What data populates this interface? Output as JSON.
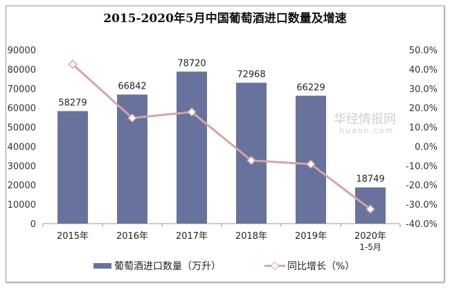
{
  "chart_data": {
    "type": "bar+line",
    "title": "2015-2020年5月中国葡萄酒进口数量及增速",
    "categories": [
      "2015年",
      "2016年",
      "2017年",
      "2018年",
      "2019年",
      "2020年1-5月"
    ],
    "series": [
      {
        "name": "葡萄酒进口数量（万升）",
        "type": "bar",
        "axis": "left",
        "color": "#67739d",
        "values": [
          58279,
          66842,
          78720,
          72968,
          66229,
          18749
        ],
        "labels": [
          "58279",
          "66842",
          "78720",
          "72968",
          "66229",
          "18749"
        ]
      },
      {
        "name": "同比增长（%）",
        "type": "line",
        "axis": "right",
        "color": "#d4a5a5",
        "values": [
          42.5,
          14.7,
          17.8,
          -7.3,
          -9.2,
          -32.5
        ]
      }
    ],
    "left_axis": {
      "range": [
        0,
        90000
      ],
      "ticks": [
        "0",
        "10000",
        "20000",
        "30000",
        "40000",
        "50000",
        "60000",
        "70000",
        "80000",
        "90000"
      ]
    },
    "right_axis": {
      "range": [
        -40,
        50
      ],
      "ticks": [
        "-40.0%",
        "-30.0%",
        "-20.0%",
        "-10.0%",
        "0.0%",
        "10.0%",
        "20.0%",
        "30.0%",
        "40.0%",
        "50.0%"
      ]
    },
    "grid": false,
    "legend": "bottom"
  },
  "watermark": {
    "text": "华经情报网",
    "sub": "huaon.com"
  }
}
